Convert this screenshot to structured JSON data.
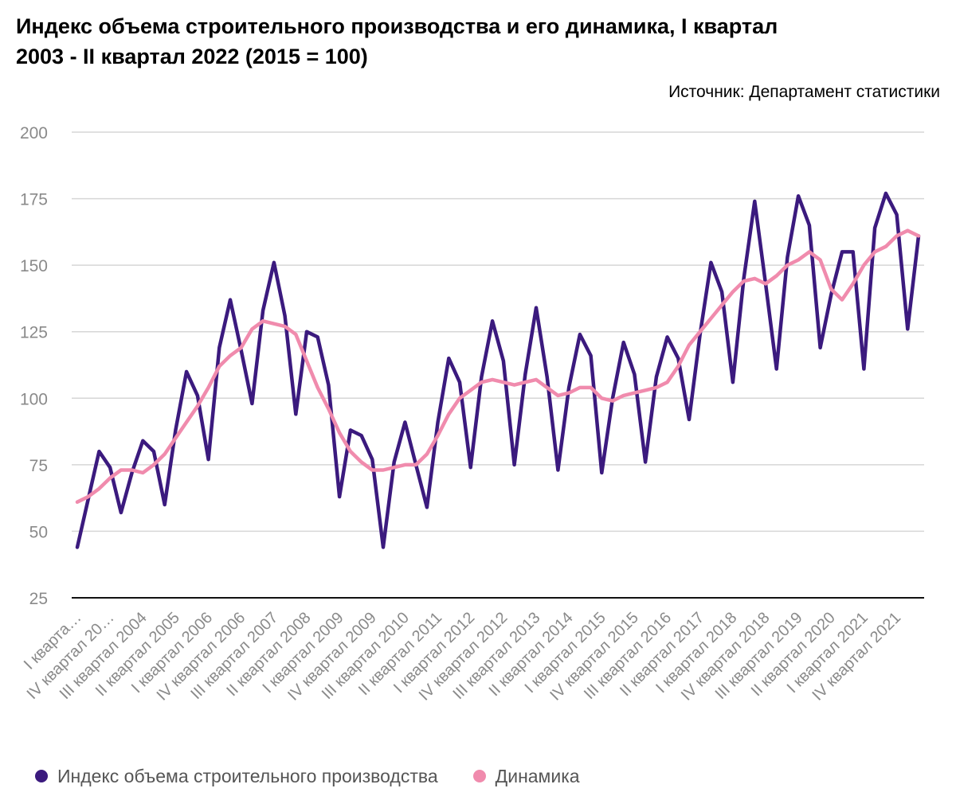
{
  "title": "Индекс объема строительного производства и его динамика, I квартал 2003 - II квартал 2022 (2015 = 100)",
  "source": "Источник: Департамент статистики",
  "chart_data": {
    "type": "line",
    "ylim": [
      25,
      200
    ],
    "yticks": [
      25,
      50,
      75,
      100,
      125,
      150,
      175,
      200
    ],
    "grid": true,
    "legend_position": "bottom-left",
    "xtick_labels": [
      "I кварта…",
      "IV квартал 20…",
      "III квартал 2004",
      "II квартал 2005",
      "I квартал 2006",
      "IV квартал 2006",
      "III квартал 2007",
      "II квартал 2008",
      "I квартал 2009",
      "IV квартал 2009",
      "III квартал 2010",
      "II квартал 2011",
      "I квартал 2012",
      "IV квартал 2012",
      "III квартал 2013",
      "II квартал 2014",
      "I квартал 2015",
      "IV квартал 2015",
      "III квартал 2016",
      "II квартал 2017",
      "I квартал 2018",
      "IV квартал 2018",
      "III квартал 2019",
      "II квартал 2020",
      "I квартал 2021",
      "IV квартал 2021"
    ],
    "xtick_every": 3,
    "series": [
      {
        "name": "Индекс объема строительного производства",
        "color": "#3b1a7e",
        "values": [
          44,
          62,
          80,
          74,
          57,
          72,
          84,
          80,
          60,
          88,
          110,
          101,
          77,
          119,
          137,
          118,
          98,
          133,
          151,
          131,
          94,
          125,
          123,
          105,
          63,
          88,
          86,
          77,
          44,
          76,
          91,
          75,
          59,
          91,
          115,
          106,
          74,
          108,
          129,
          114,
          75,
          109,
          134,
          108,
          73,
          104,
          124,
          116,
          72,
          100,
          121,
          109,
          76,
          108,
          123,
          115,
          92,
          124,
          151,
          140,
          106,
          145,
          174,
          143,
          111,
          153,
          176,
          165,
          119,
          139,
          155,
          155,
          111,
          164,
          177,
          169,
          126,
          161
        ]
      },
      {
        "name": "Динамика",
        "color": "#f08bad",
        "values": [
          61,
          63,
          66,
          70,
          73,
          73,
          72,
          75,
          79,
          85,
          91,
          97,
          104,
          112,
          116,
          119,
          126,
          129,
          128,
          127,
          124,
          114,
          104,
          96,
          87,
          80,
          76,
          73,
          73,
          74,
          75,
          75,
          79,
          86,
          94,
          100,
          103,
          106,
          107,
          106,
          105,
          106,
          107,
          104,
          101,
          102,
          104,
          104,
          100,
          99,
          101,
          102,
          103,
          104,
          106,
          112,
          120,
          125,
          130,
          135,
          140,
          144,
          145,
          143,
          146,
          150,
          152,
          155,
          152,
          141,
          137,
          143,
          150,
          155,
          157,
          161,
          163,
          161
        ]
      }
    ]
  }
}
